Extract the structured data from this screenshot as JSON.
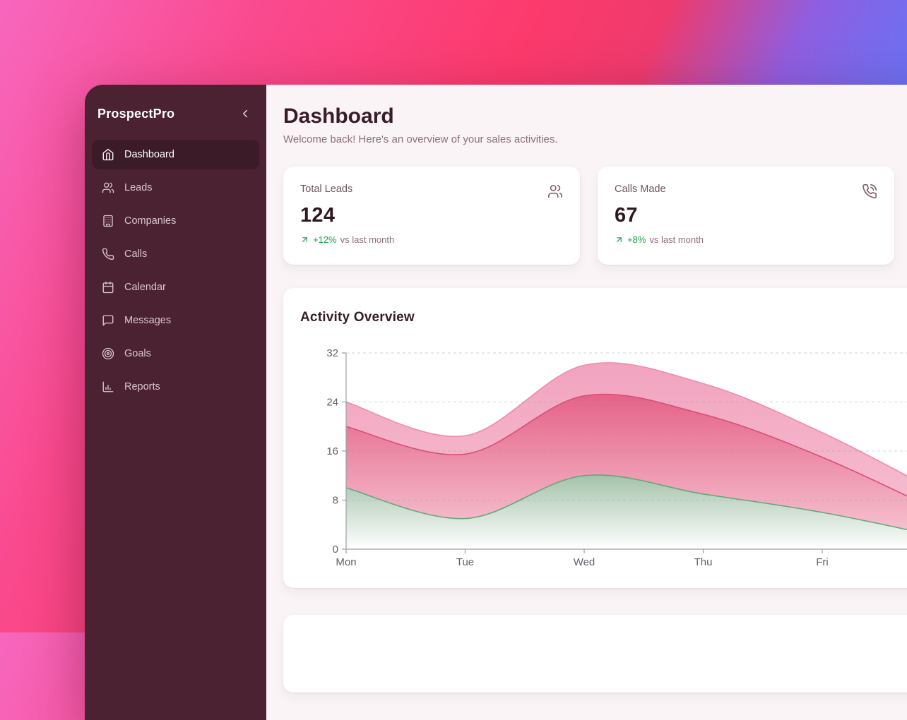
{
  "app": {
    "name": "ProspectPro"
  },
  "sidebar": {
    "brand": "ProspectPro",
    "collapse_icon": "chevron-left",
    "items": [
      {
        "label": "Dashboard",
        "icon": "home",
        "active": true
      },
      {
        "label": "Leads",
        "icon": "users",
        "active": false
      },
      {
        "label": "Companies",
        "icon": "building",
        "active": false
      },
      {
        "label": "Calls",
        "icon": "phone",
        "active": false
      },
      {
        "label": "Calendar",
        "icon": "calendar",
        "active": false
      },
      {
        "label": "Messages",
        "icon": "message-square",
        "active": false
      },
      {
        "label": "Goals",
        "icon": "target",
        "active": false
      },
      {
        "label": "Reports",
        "icon": "bar-chart",
        "active": false
      }
    ]
  },
  "header": {
    "title": "Dashboard",
    "subtitle": "Welcome back! Here's an overview of your sales activities."
  },
  "stats": [
    {
      "label": "Total Leads",
      "value": "124",
      "icon": "users",
      "trend_icon": "arrow-up-right",
      "trend": "+12%",
      "trend_note": "vs last month"
    },
    {
      "label": "Calls Made",
      "value": "67",
      "icon": "phone-call",
      "trend_icon": "arrow-up-right",
      "trend": "+8%",
      "trend_note": "vs last month"
    }
  ],
  "chart_card": {
    "title": "Activity Overview"
  },
  "chart_data": {
    "type": "area",
    "stacked": true,
    "title": "Activity Overview",
    "x_labels_visible": [
      "Mon",
      "Tue",
      "Wed",
      "Thu",
      "Fri"
    ],
    "clipped_right": true,
    "ylim": [
      0,
      32
    ],
    "y_ticks": [
      0,
      8,
      16,
      24,
      32
    ],
    "grid": "horizontal-dashed",
    "legend": "none",
    "series": [
      {
        "name": "bottom (green)",
        "stroke": "#63a87a",
        "fill_top": "#a3c2aa",
        "fill_bottom": "#ffffff",
        "values": [
          10,
          5,
          12,
          9,
          6,
          2
        ]
      },
      {
        "name": "middle (rose)",
        "stroke": "#da4e76",
        "fill_top": "#e56287",
        "fill_bottom": "#f8cdd9",
        "values": [
          10,
          10.5,
          13,
          13,
          9,
          4
        ]
      },
      {
        "name": "top (light pink)",
        "stroke": "#ef8cad",
        "fill_top": "#f2a3bf",
        "fill_bottom": "#f7c4d4",
        "values": [
          4,
          3,
          5,
          5,
          4,
          3
        ]
      }
    ]
  },
  "colors": {
    "background_gradient": [
      "#f767be",
      "#fc3a6c",
      "#6d70f2"
    ],
    "sidebar_bg": "#4a2232",
    "sidebar_active_bg": "#3c1b28",
    "main_bg": "#faf4f6",
    "card_bg": "#ffffff",
    "heading": "#3a1b29",
    "muted_text": "#8d6e7a",
    "trend_green": "#16a34a",
    "axis_text": "#5f6368"
  }
}
